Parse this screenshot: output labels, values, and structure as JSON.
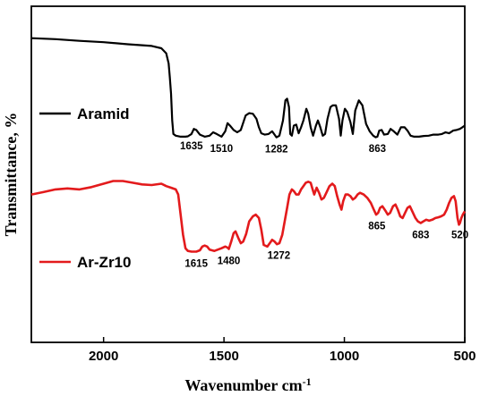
{
  "chart_data": {
    "type": "line",
    "title": "",
    "xlabel": "Wavenumber cm",
    "xlabel_superscript": "-1",
    "ylabel": "Transmittance, %",
    "xlim": [
      2300,
      500
    ],
    "x_reversed": true,
    "x_ticks": [
      2000,
      1500,
      1000,
      500
    ],
    "y_ticks": [],
    "grid": false,
    "legend": "inline-left",
    "series": [
      {
        "name": "Aramid",
        "color": "#000000",
        "points": [
          [
            2300,
            0.905
          ],
          [
            2200,
            0.902
          ],
          [
            2100,
            0.897
          ],
          [
            2000,
            0.893
          ],
          [
            1900,
            0.887
          ],
          [
            1800,
            0.882
          ],
          [
            1760,
            0.875
          ],
          [
            1740,
            0.86
          ],
          [
            1730,
            0.83
          ],
          [
            1725,
            0.79
          ],
          [
            1720,
            0.74
          ],
          [
            1715,
            0.66
          ],
          [
            1710,
            0.62
          ],
          [
            1700,
            0.615
          ],
          [
            1680,
            0.612
          ],
          [
            1660,
            0.612
          ],
          [
            1650,
            0.613
          ],
          [
            1635,
            0.62
          ],
          [
            1625,
            0.635
          ],
          [
            1615,
            0.632
          ],
          [
            1600,
            0.618
          ],
          [
            1580,
            0.612
          ],
          [
            1560,
            0.615
          ],
          [
            1545,
            0.625
          ],
          [
            1530,
            0.62
          ],
          [
            1510,
            0.612
          ],
          [
            1495,
            0.628
          ],
          [
            1485,
            0.652
          ],
          [
            1475,
            0.645
          ],
          [
            1460,
            0.632
          ],
          [
            1445,
            0.625
          ],
          [
            1430,
            0.632
          ],
          [
            1410,
            0.675
          ],
          [
            1395,
            0.682
          ],
          [
            1380,
            0.68
          ],
          [
            1365,
            0.665
          ],
          [
            1355,
            0.64
          ],
          [
            1345,
            0.622
          ],
          [
            1330,
            0.618
          ],
          [
            1315,
            0.62
          ],
          [
            1300,
            0.628
          ],
          [
            1290,
            0.618
          ],
          [
            1282,
            0.61
          ],
          [
            1270,
            0.615
          ],
          [
            1255,
            0.66
          ],
          [
            1245,
            0.72
          ],
          [
            1238,
            0.725
          ],
          [
            1230,
            0.7
          ],
          [
            1225,
            0.62
          ],
          [
            1218,
            0.615
          ],
          [
            1210,
            0.645
          ],
          [
            1200,
            0.648
          ],
          [
            1190,
            0.622
          ],
          [
            1180,
            0.64
          ],
          [
            1170,
            0.66
          ],
          [
            1158,
            0.695
          ],
          [
            1150,
            0.68
          ],
          [
            1140,
            0.64
          ],
          [
            1130,
            0.615
          ],
          [
            1118,
            0.645
          ],
          [
            1110,
            0.66
          ],
          [
            1100,
            0.64
          ],
          [
            1090,
            0.615
          ],
          [
            1080,
            0.62
          ],
          [
            1070,
            0.665
          ],
          [
            1058,
            0.7
          ],
          [
            1048,
            0.705
          ],
          [
            1035,
            0.705
          ],
          [
            1022,
            0.665
          ],
          [
            1015,
            0.615
          ],
          [
            1008,
            0.66
          ],
          [
            998,
            0.695
          ],
          [
            988,
            0.685
          ],
          [
            975,
            0.655
          ],
          [
            965,
            0.62
          ],
          [
            955,
            0.69
          ],
          [
            940,
            0.72
          ],
          [
            925,
            0.705
          ],
          [
            910,
            0.65
          ],
          [
            895,
            0.628
          ],
          [
            880,
            0.615
          ],
          [
            870,
            0.61
          ],
          [
            863,
            0.612
          ],
          [
            855,
            0.63
          ],
          [
            845,
            0.632
          ],
          [
            835,
            0.618
          ],
          [
            820,
            0.62
          ],
          [
            808,
            0.635
          ],
          [
            795,
            0.628
          ],
          [
            780,
            0.618
          ],
          [
            765,
            0.64
          ],
          [
            750,
            0.64
          ],
          [
            738,
            0.63
          ],
          [
            725,
            0.615
          ],
          [
            710,
            0.612
          ],
          [
            690,
            0.612
          ],
          [
            670,
            0.614
          ],
          [
            650,
            0.615
          ],
          [
            630,
            0.618
          ],
          [
            610,
            0.618
          ],
          [
            595,
            0.62
          ],
          [
            580,
            0.625
          ],
          [
            565,
            0.622
          ],
          [
            548,
            0.63
          ],
          [
            535,
            0.632
          ],
          [
            520,
            0.635
          ],
          [
            510,
            0.64
          ],
          [
            500,
            0.645
          ]
        ]
      },
      {
        "name": "Ar-Zr10",
        "color": "#e31a1c",
        "points": [
          [
            2300,
            0.44
          ],
          [
            2250,
            0.447
          ],
          [
            2200,
            0.455
          ],
          [
            2150,
            0.458
          ],
          [
            2100,
            0.455
          ],
          [
            2050,
            0.462
          ],
          [
            2000,
            0.472
          ],
          [
            1960,
            0.48
          ],
          [
            1920,
            0.48
          ],
          [
            1880,
            0.475
          ],
          [
            1840,
            0.47
          ],
          [
            1800,
            0.468
          ],
          [
            1760,
            0.472
          ],
          [
            1740,
            0.465
          ],
          [
            1720,
            0.46
          ],
          [
            1700,
            0.455
          ],
          [
            1690,
            0.44
          ],
          [
            1680,
            0.38
          ],
          [
            1670,
            0.32
          ],
          [
            1660,
            0.28
          ],
          [
            1650,
            0.272
          ],
          [
            1635,
            0.27
          ],
          [
            1615,
            0.27
          ],
          [
            1600,
            0.274
          ],
          [
            1590,
            0.285
          ],
          [
            1580,
            0.288
          ],
          [
            1570,
            0.285
          ],
          [
            1560,
            0.276
          ],
          [
            1540,
            0.272
          ],
          [
            1525,
            0.276
          ],
          [
            1510,
            0.28
          ],
          [
            1495,
            0.285
          ],
          [
            1485,
            0.282
          ],
          [
            1480,
            0.278
          ],
          [
            1470,
            0.3
          ],
          [
            1460,
            0.325
          ],
          [
            1452,
            0.33
          ],
          [
            1440,
            0.31
          ],
          [
            1430,
            0.295
          ],
          [
            1420,
            0.3
          ],
          [
            1408,
            0.322
          ],
          [
            1395,
            0.36
          ],
          [
            1380,
            0.375
          ],
          [
            1368,
            0.38
          ],
          [
            1355,
            0.37
          ],
          [
            1345,
            0.335
          ],
          [
            1335,
            0.29
          ],
          [
            1320,
            0.285
          ],
          [
            1310,
            0.295
          ],
          [
            1300,
            0.305
          ],
          [
            1290,
            0.3
          ],
          [
            1280,
            0.292
          ],
          [
            1270,
            0.295
          ],
          [
            1258,
            0.32
          ],
          [
            1248,
            0.36
          ],
          [
            1238,
            0.4
          ],
          [
            1228,
            0.44
          ],
          [
            1218,
            0.455
          ],
          [
            1210,
            0.45
          ],
          [
            1200,
            0.44
          ],
          [
            1190,
            0.44
          ],
          [
            1180,
            0.455
          ],
          [
            1170,
            0.465
          ],
          [
            1160,
            0.475
          ],
          [
            1150,
            0.478
          ],
          [
            1140,
            0.475
          ],
          [
            1132,
            0.455
          ],
          [
            1125,
            0.44
          ],
          [
            1115,
            0.46
          ],
          [
            1105,
            0.445
          ],
          [
            1095,
            0.425
          ],
          [
            1085,
            0.43
          ],
          [
            1075,
            0.445
          ],
          [
            1062,
            0.465
          ],
          [
            1050,
            0.472
          ],
          [
            1040,
            0.465
          ],
          [
            1030,
            0.435
          ],
          [
            1020,
            0.41
          ],
          [
            1012,
            0.395
          ],
          [
            1005,
            0.42
          ],
          [
            995,
            0.44
          ],
          [
            985,
            0.44
          ],
          [
            975,
            0.435
          ],
          [
            965,
            0.425
          ],
          [
            955,
            0.43
          ],
          [
            945,
            0.44
          ],
          [
            935,
            0.445
          ],
          [
            920,
            0.44
          ],
          [
            905,
            0.43
          ],
          [
            890,
            0.415
          ],
          [
            878,
            0.395
          ],
          [
            868,
            0.38
          ],
          [
            860,
            0.385
          ],
          [
            852,
            0.4
          ],
          [
            842,
            0.405
          ],
          [
            830,
            0.392
          ],
          [
            820,
            0.38
          ],
          [
            810,
            0.385
          ],
          [
            798,
            0.405
          ],
          [
            788,
            0.41
          ],
          [
            778,
            0.395
          ],
          [
            768,
            0.375
          ],
          [
            758,
            0.37
          ],
          [
            748,
            0.385
          ],
          [
            738,
            0.4
          ],
          [
            728,
            0.405
          ],
          [
            718,
            0.39
          ],
          [
            705,
            0.37
          ],
          [
            695,
            0.36
          ],
          [
            683,
            0.355
          ],
          [
            672,
            0.36
          ],
          [
            660,
            0.365
          ],
          [
            648,
            0.362
          ],
          [
            635,
            0.365
          ],
          [
            622,
            0.37
          ],
          [
            610,
            0.372
          ],
          [
            598,
            0.375
          ],
          [
            586,
            0.38
          ],
          [
            575,
            0.395
          ],
          [
            565,
            0.415
          ],
          [
            555,
            0.43
          ],
          [
            545,
            0.435
          ],
          [
            538,
            0.42
          ],
          [
            530,
            0.37
          ],
          [
            524,
            0.35
          ],
          [
            520,
            0.355
          ],
          [
            514,
            0.37
          ],
          [
            508,
            0.38
          ],
          [
            500,
            0.39
          ]
        ]
      }
    ],
    "annotations": [
      {
        "label": "1635",
        "x": 1635,
        "series": 0
      },
      {
        "label": "1510",
        "x": 1510,
        "series": 0
      },
      {
        "label": "1282",
        "x": 1282,
        "series": 0
      },
      {
        "label": "863",
        "x": 863,
        "series": 0
      },
      {
        "label": "1615",
        "x": 1615,
        "series": 1
      },
      {
        "label": "1480",
        "x": 1480,
        "series": 1
      },
      {
        "label": "1272",
        "x": 1272,
        "series": 1
      },
      {
        "label": "865",
        "x": 865,
        "series": 1
      },
      {
        "label": "683",
        "x": 683,
        "series": 1
      },
      {
        "label": "520",
        "x": 520,
        "series": 1
      }
    ]
  }
}
